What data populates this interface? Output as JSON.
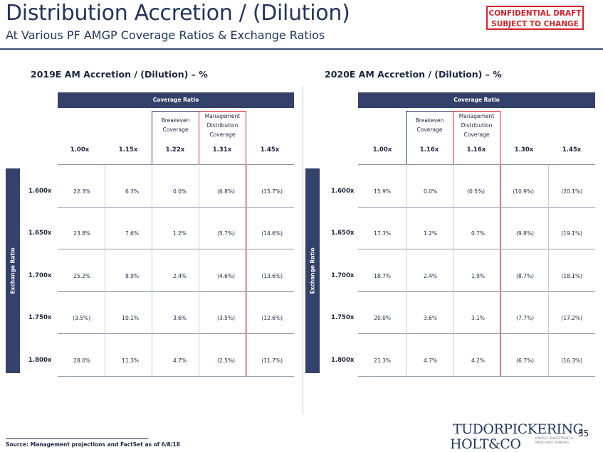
{
  "header": {
    "title": "Distribution Accretion / (Dilution)",
    "subtitle": "At Various PF AMGP Coverage Ratios & Exchange Ratios",
    "confidential": [
      "CONFIDENTIAL DRAFT",
      "SUBJECT TO CHANGE"
    ]
  },
  "tables": [
    {
      "title": "2019E AM Accretion / (Dilution) – %",
      "coverage_label": "Coverage Ratio",
      "exchange_label": "Exchange Ratio",
      "breakeven_label": [
        "Breakeven",
        "Coverage"
      ],
      "mgmt_label": [
        "Management",
        "Distribution",
        "Coverage"
      ],
      "columns": [
        "1.00x",
        "1.15x",
        "1.22x",
        "1.31x",
        "1.45x"
      ],
      "rows": [
        {
          "label": "1.600x",
          "values": [
            "22.3%",
            "6.3%",
            "0.0%",
            "(6.8%)",
            "(15.7%)"
          ]
        },
        {
          "label": "1.650x",
          "values": [
            "23.8%",
            "7.6%",
            "1.2%",
            "(5.7%)",
            "(14.6%)"
          ]
        },
        {
          "label": "1.700x",
          "values": [
            "25.2%",
            "8.9%",
            "2.4%",
            "(4.6%)",
            "(13.6%)"
          ]
        },
        {
          "label": "1.750x",
          "values": [
            "(3.5%)",
            "10.1%",
            "3.6%",
            "(3.5%)",
            "(12.6%)"
          ]
        },
        {
          "label": "1.800x",
          "values": [
            "28.0%",
            "11.3%",
            "4.7%",
            "(2.5%)",
            "(11.7%)"
          ]
        }
      ]
    },
    {
      "title": "2020E AM Accretion / (Dilution) – %",
      "coverage_label": "Coverage Ratio",
      "exchange_label": "Exchange Ratio",
      "breakeven_label": [
        "Breakeven",
        "Coverage"
      ],
      "mgmt_label": [
        "Management",
        "Distribution",
        "Coverage"
      ],
      "columns": [
        "1.00x",
        "1.16x",
        "1.16x",
        "1.30x",
        "1.45x"
      ],
      "rows": [
        {
          "label": "1.600x",
          "values": [
            "15.9%",
            "0.0%",
            "(0.5%)",
            "(10.9%)",
            "(20.1%)"
          ]
        },
        {
          "label": "1.650x",
          "values": [
            "17.3%",
            "1.2%",
            "0.7%",
            "(9.8%)",
            "(19.1%)"
          ]
        },
        {
          "label": "1.700x",
          "values": [
            "18.7%",
            "2.4%",
            "1.9%",
            "(8.7%)",
            "(18.1%)"
          ]
        },
        {
          "label": "1.750x",
          "values": [
            "20.0%",
            "3.6%",
            "3.1%",
            "(7.7%)",
            "(17.2%)"
          ]
        },
        {
          "label": "1.800x",
          "values": [
            "21.3%",
            "4.7%",
            "4.2%",
            "(6.7%)",
            "(16.3%)"
          ]
        }
      ]
    }
  ],
  "footer": {
    "source": "Source: Management projections and FactSet as of 6/8/18",
    "logo_line1": "TUDORPICKERING",
    "logo_line2": "HOLT&CO",
    "logo_tagline": [
      "ENERGY INVESTMENT &",
      "MERCHANT BANKING"
    ],
    "page_number": "55"
  },
  "colors": {
    "navy": "#33416b",
    "red": "#d9222a"
  }
}
